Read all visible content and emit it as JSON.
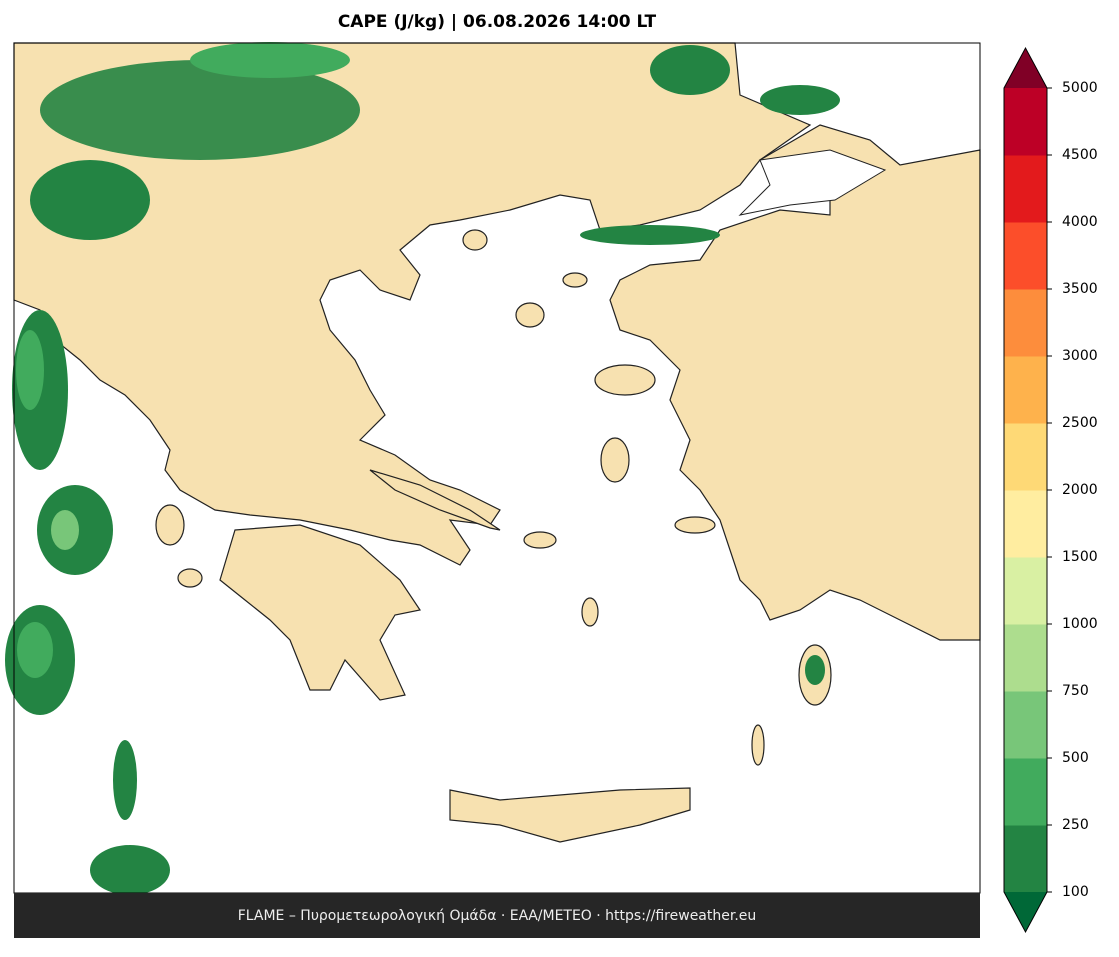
{
  "header": {
    "title": "CAPE (J/kg)  |  06.08.2026 14:00 LT"
  },
  "footer": {
    "text": "FLAME – Πυρομετεωρολογική Ομάδα · ΕΑΑ/METEO · https://fireweather.eu"
  },
  "colorbar": {
    "ticks": [
      100,
      250,
      500,
      750,
      1000,
      1500,
      2000,
      2500,
      3000,
      3500,
      4000,
      4500,
      5000
    ],
    "colors": [
      "#238443",
      "#41ab5d",
      "#78c679",
      "#addd8e",
      "#d9f0a3",
      "#ffeda0",
      "#fed976",
      "#feb24c",
      "#fd8d3c",
      "#fc4e2a",
      "#e31a1c",
      "#bd0026"
    ],
    "under_color": "#006837",
    "over_color": "#800026"
  }
}
